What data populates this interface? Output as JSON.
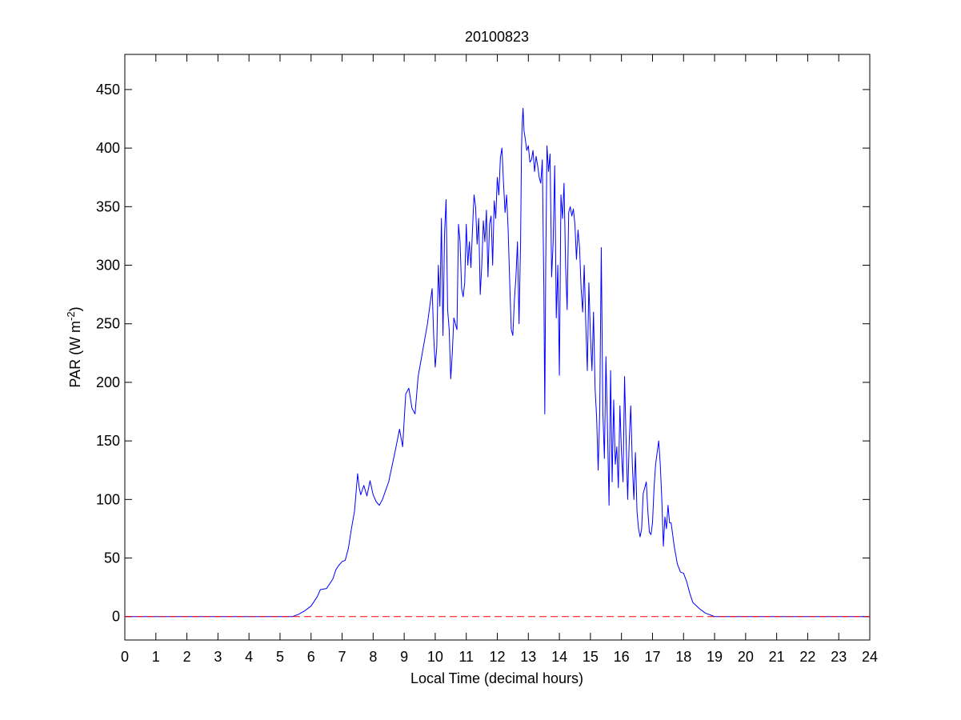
{
  "chart_data": {
    "type": "line",
    "title": "20100823",
    "xlabel": "Local Time (decimal hours)",
    "ylabel_main": "PAR (W m",
    "ylabel_exp": "-2",
    "ylabel_close": ")",
    "xlim": [
      0,
      24
    ],
    "ylim": [
      -20,
      480
    ],
    "xticks": [
      0,
      1,
      2,
      3,
      4,
      5,
      6,
      7,
      8,
      9,
      10,
      11,
      12,
      13,
      14,
      15,
      16,
      17,
      18,
      19,
      20,
      21,
      22,
      23,
      24
    ],
    "yticks": [
      0,
      50,
      100,
      150,
      200,
      250,
      300,
      350,
      400,
      450
    ],
    "grid": false,
    "series": [
      {
        "color": "#0000ff",
        "style": "solid",
        "points": [
          [
            0,
            0
          ],
          [
            5.4,
            0
          ],
          [
            5.6,
            2
          ],
          [
            5.8,
            5
          ],
          [
            6.0,
            9
          ],
          [
            6.2,
            17
          ],
          [
            6.3,
            23
          ],
          [
            6.5,
            24
          ],
          [
            6.7,
            32
          ],
          [
            6.8,
            40
          ],
          [
            6.9,
            44
          ],
          [
            7.0,
            47
          ],
          [
            7.1,
            48
          ],
          [
            7.2,
            58
          ],
          [
            7.3,
            75
          ],
          [
            7.4,
            90
          ],
          [
            7.5,
            122
          ],
          [
            7.55,
            110
          ],
          [
            7.6,
            104
          ],
          [
            7.7,
            112
          ],
          [
            7.8,
            103
          ],
          [
            7.9,
            116
          ],
          [
            8.0,
            104
          ],
          [
            8.1,
            98
          ],
          [
            8.2,
            95
          ],
          [
            8.3,
            100
          ],
          [
            8.5,
            115
          ],
          [
            8.7,
            140
          ],
          [
            8.85,
            160
          ],
          [
            8.95,
            145
          ],
          [
            9.05,
            190
          ],
          [
            9.15,
            195
          ],
          [
            9.25,
            178
          ],
          [
            9.35,
            173
          ],
          [
            9.45,
            205
          ],
          [
            9.55,
            220
          ],
          [
            9.65,
            235
          ],
          [
            9.75,
            250
          ],
          [
            9.85,
            270
          ],
          [
            9.9,
            280
          ],
          [
            9.95,
            240
          ],
          [
            10.0,
            213
          ],
          [
            10.05,
            230
          ],
          [
            10.1,
            300
          ],
          [
            10.15,
            265
          ],
          [
            10.2,
            340
          ],
          [
            10.25,
            240
          ],
          [
            10.3,
            327
          ],
          [
            10.35,
            356
          ],
          [
            10.4,
            262
          ],
          [
            10.45,
            245
          ],
          [
            10.5,
            203
          ],
          [
            10.55,
            225
          ],
          [
            10.6,
            255
          ],
          [
            10.7,
            245
          ],
          [
            10.75,
            335
          ],
          [
            10.8,
            320
          ],
          [
            10.85,
            280
          ],
          [
            10.9,
            273
          ],
          [
            10.95,
            285
          ],
          [
            11.0,
            335
          ],
          [
            11.05,
            300
          ],
          [
            11.1,
            320
          ],
          [
            11.15,
            298
          ],
          [
            11.2,
            330
          ],
          [
            11.25,
            360
          ],
          [
            11.3,
            350
          ],
          [
            11.35,
            318
          ],
          [
            11.4,
            340
          ],
          [
            11.45,
            275
          ],
          [
            11.5,
            300
          ],
          [
            11.55,
            338
          ],
          [
            11.6,
            320
          ],
          [
            11.65,
            347
          ],
          [
            11.7,
            290
          ],
          [
            11.75,
            335
          ],
          [
            11.8,
            342
          ],
          [
            11.85,
            300
          ],
          [
            11.9,
            355
          ],
          [
            11.95,
            340
          ],
          [
            12.0,
            375
          ],
          [
            12.05,
            360
          ],
          [
            12.1,
            392
          ],
          [
            12.15,
            400
          ],
          [
            12.2,
            370
          ],
          [
            12.25,
            345
          ],
          [
            12.3,
            360
          ],
          [
            12.35,
            330
          ],
          [
            12.4,
            285
          ],
          [
            12.45,
            245
          ],
          [
            12.5,
            240
          ],
          [
            12.55,
            270
          ],
          [
            12.6,
            290
          ],
          [
            12.65,
            320
          ],
          [
            12.7,
            250
          ],
          [
            12.75,
            320
          ],
          [
            12.78,
            400
          ],
          [
            12.8,
            420
          ],
          [
            12.83,
            434
          ],
          [
            12.86,
            415
          ],
          [
            12.9,
            408
          ],
          [
            12.95,
            398
          ],
          [
            13.0,
            402
          ],
          [
            13.05,
            388
          ],
          [
            13.1,
            390
          ],
          [
            13.15,
            398
          ],
          [
            13.2,
            380
          ],
          [
            13.25,
            393
          ],
          [
            13.3,
            385
          ],
          [
            13.35,
            375
          ],
          [
            13.4,
            370
          ],
          [
            13.45,
            390
          ],
          [
            13.5,
            280
          ],
          [
            13.53,
            173
          ],
          [
            13.56,
            300
          ],
          [
            13.6,
            402
          ],
          [
            13.65,
            380
          ],
          [
            13.7,
            395
          ],
          [
            13.75,
            290
          ],
          [
            13.8,
            320
          ],
          [
            13.85,
            385
          ],
          [
            13.9,
            255
          ],
          [
            13.95,
            300
          ],
          [
            14.0,
            206
          ],
          [
            14.05,
            360
          ],
          [
            14.1,
            340
          ],
          [
            14.15,
            370
          ],
          [
            14.2,
            300
          ],
          [
            14.25,
            262
          ],
          [
            14.3,
            345
          ],
          [
            14.35,
            350
          ],
          [
            14.4,
            342
          ],
          [
            14.45,
            348
          ],
          [
            14.5,
            335
          ],
          [
            14.55,
            305
          ],
          [
            14.6,
            330
          ],
          [
            14.65,
            315
          ],
          [
            14.7,
            280
          ],
          [
            14.75,
            260
          ],
          [
            14.8,
            300
          ],
          [
            14.85,
            250
          ],
          [
            14.9,
            210
          ],
          [
            14.95,
            285
          ],
          [
            15.0,
            240
          ],
          [
            15.05,
            210
          ],
          [
            15.1,
            260
          ],
          [
            15.15,
            195
          ],
          [
            15.2,
            170
          ],
          [
            15.25,
            125
          ],
          [
            15.3,
            175
          ],
          [
            15.35,
            315
          ],
          [
            15.4,
            175
          ],
          [
            15.45,
            135
          ],
          [
            15.5,
            222
          ],
          [
            15.55,
            160
          ],
          [
            15.6,
            95
          ],
          [
            15.65,
            210
          ],
          [
            15.7,
            115
          ],
          [
            15.75,
            185
          ],
          [
            15.8,
            130
          ],
          [
            15.85,
            145
          ],
          [
            15.9,
            110
          ],
          [
            15.95,
            180
          ],
          [
            16.0,
            140
          ],
          [
            16.05,
            115
          ],
          [
            16.1,
            205
          ],
          [
            16.15,
            150
          ],
          [
            16.2,
            100
          ],
          [
            16.25,
            150
          ],
          [
            16.3,
            180
          ],
          [
            16.35,
            130
          ],
          [
            16.4,
            100
          ],
          [
            16.45,
            140
          ],
          [
            16.5,
            90
          ],
          [
            16.55,
            75
          ],
          [
            16.6,
            68
          ],
          [
            16.65,
            75
          ],
          [
            16.7,
            105
          ],
          [
            16.75,
            110
          ],
          [
            16.8,
            115
          ],
          [
            16.85,
            90
          ],
          [
            16.9,
            72
          ],
          [
            16.95,
            70
          ],
          [
            17.0,
            80
          ],
          [
            17.05,
            110
          ],
          [
            17.1,
            130
          ],
          [
            17.15,
            140
          ],
          [
            17.2,
            150
          ],
          [
            17.25,
            130
          ],
          [
            17.3,
            100
          ],
          [
            17.35,
            60
          ],
          [
            17.4,
            85
          ],
          [
            17.45,
            75
          ],
          [
            17.5,
            95
          ],
          [
            17.55,
            80
          ],
          [
            17.6,
            80
          ],
          [
            17.7,
            60
          ],
          [
            17.8,
            45
          ],
          [
            17.9,
            38
          ],
          [
            18.0,
            37
          ],
          [
            18.1,
            30
          ],
          [
            18.2,
            20
          ],
          [
            18.3,
            12
          ],
          [
            18.5,
            7
          ],
          [
            18.7,
            3
          ],
          [
            19.0,
            0
          ],
          [
            24,
            0
          ]
        ]
      },
      {
        "color": "#ff0000",
        "style": "dashed",
        "points": [
          [
            0,
            0
          ],
          [
            24,
            0
          ]
        ]
      }
    ]
  }
}
